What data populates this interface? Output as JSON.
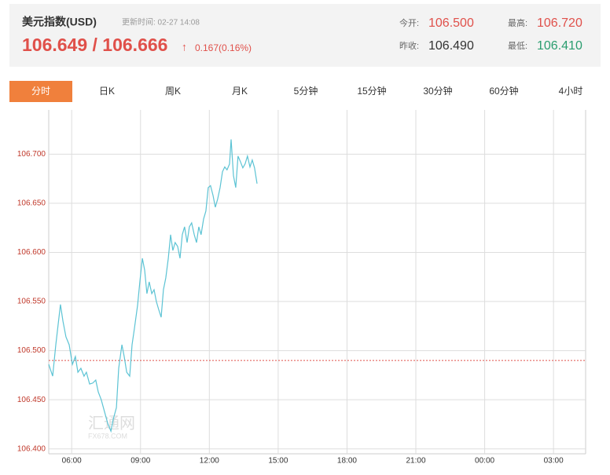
{
  "header": {
    "title": "美元指数(USD)",
    "update_label": "更新时间: 02-27 14:08",
    "price": "106.649 / 106.666",
    "arrow": "↑",
    "change": "0.167(0.16%)",
    "open": {
      "label": "今开:",
      "value": "106.500"
    },
    "high": {
      "label": "最高:",
      "value": "106.720"
    },
    "prev_close": {
      "label": "昨收:",
      "value": "106.490"
    },
    "low": {
      "label": "最低:",
      "value": "106.410"
    }
  },
  "tabs": [
    "分时",
    "日K",
    "周K",
    "月K",
    "5分钟",
    "15分钟",
    "30分钟",
    "60分钟",
    "4小时"
  ],
  "watermark": {
    "name": "汇通网",
    "site": "FX678.COM"
  },
  "chart_data": {
    "type": "line",
    "color": "#5cc3d4",
    "x": [
      5.0,
      5.17,
      5.31,
      5.51,
      5.62,
      5.75,
      5.89,
      6.03,
      6.16,
      6.27,
      6.4,
      6.54,
      6.64,
      6.78,
      6.92,
      7.05,
      7.16,
      7.29,
      7.43,
      7.57,
      7.71,
      7.81,
      7.95,
      8.05,
      8.19,
      8.29,
      8.4,
      8.53,
      8.63,
      8.73,
      8.87,
      8.97,
      9.08,
      9.18,
      9.28,
      9.38,
      9.49,
      9.59,
      9.69,
      9.79,
      9.9,
      10.0,
      10.1,
      10.21,
      10.31,
      10.41,
      10.51,
      10.62,
      10.72,
      10.82,
      10.92,
      11.03,
      11.13,
      11.23,
      11.34,
      11.44,
      11.54,
      11.64,
      11.75,
      11.85,
      11.95,
      12.05,
      12.16,
      12.26,
      12.36,
      12.47,
      12.57,
      12.67,
      12.77,
      12.88,
      12.95,
      13.05,
      13.15,
      13.25,
      13.36,
      13.46,
      13.56,
      13.66,
      13.77,
      13.87,
      13.97,
      14.08
    ],
    "values": [
      106.486,
      106.474,
      106.506,
      106.547,
      106.53,
      106.514,
      106.506,
      106.486,
      106.494,
      106.478,
      106.482,
      106.474,
      106.478,
      106.466,
      106.467,
      106.47,
      106.458,
      106.45,
      106.438,
      106.426,
      106.418,
      106.43,
      106.442,
      106.482,
      106.506,
      106.494,
      106.478,
      106.474,
      106.506,
      106.522,
      106.546,
      106.57,
      106.594,
      106.582,
      106.558,
      106.57,
      106.558,
      106.562,
      106.55,
      106.542,
      106.534,
      106.562,
      106.574,
      106.594,
      106.618,
      106.602,
      106.61,
      106.606,
      106.594,
      106.618,
      106.626,
      106.61,
      106.626,
      106.63,
      106.618,
      106.61,
      106.626,
      106.618,
      106.634,
      106.642,
      106.666,
      106.668,
      106.658,
      106.646,
      106.654,
      106.666,
      106.682,
      106.687,
      106.684,
      106.69,
      106.715,
      106.678,
      106.666,
      106.698,
      106.692,
      106.686,
      106.69,
      106.698,
      106.687,
      106.694,
      106.686,
      106.67
    ],
    "xlim": [
      5,
      28.4
    ],
    "ylim": [
      106.395,
      106.745
    ],
    "xticks": [
      {
        "value": 6,
        "label": "06:00"
      },
      {
        "value": 9,
        "label": "09:00"
      },
      {
        "value": 12,
        "label": "12:00"
      },
      {
        "value": 15,
        "label": "15:00"
      },
      {
        "value": 18,
        "label": "18:00"
      },
      {
        "value": 21,
        "label": "21:00"
      },
      {
        "value": 24,
        "label": "00:00"
      },
      {
        "value": 27,
        "label": "03:00"
      }
    ],
    "yticks": [
      {
        "value": 106.4,
        "label": "106.400"
      },
      {
        "value": 106.45,
        "label": "106.450"
      },
      {
        "value": 106.5,
        "label": "106.500"
      },
      {
        "value": 106.55,
        "label": "106.550"
      },
      {
        "value": 106.6,
        "label": "106.600"
      },
      {
        "value": 106.65,
        "label": "106.650"
      },
      {
        "value": 106.7,
        "label": "106.700"
      }
    ],
    "grid": true
  }
}
